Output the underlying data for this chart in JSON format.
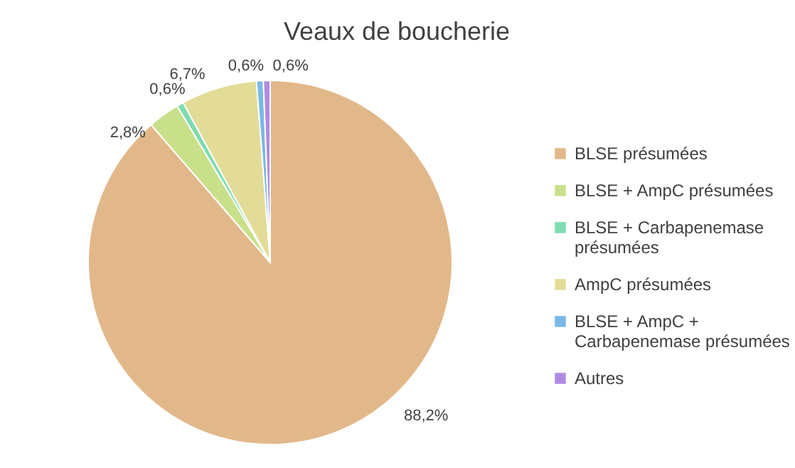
{
  "chart_data": {
    "type": "pie",
    "title": "Veaux de boucherie",
    "categories": [
      "BLSE présumées",
      "BLSE + AmpC présumées",
      "BLSE + Carbapenemase présumées",
      "AmpC présumées",
      "BLSE + AmpC + Carbapenemase présumées",
      "Autres"
    ],
    "values": [
      88.2,
      2.8,
      0.6,
      6.7,
      0.6,
      0.6
    ],
    "value_labels": [
      "88,2%",
      "2,8%",
      "0,6%",
      "6,7%",
      "0,6%",
      "0,6%"
    ],
    "colors": [
      "#e2b88a",
      "#c9e08a",
      "#7fdcb0",
      "#e3dc98",
      "#7ab8e6",
      "#b08be0"
    ],
    "legend": "right"
  }
}
